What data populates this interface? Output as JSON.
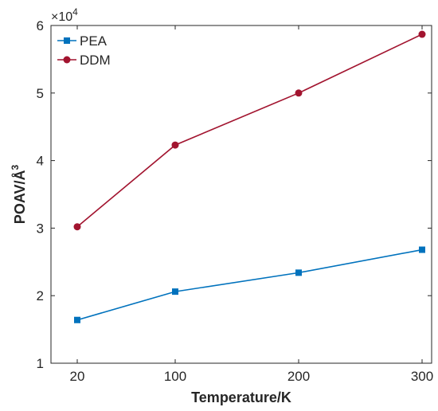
{
  "chart_data": {
    "type": "line",
    "x": [
      20,
      100,
      200,
      300
    ],
    "x_tick_labels": [
      "20",
      "100",
      "200",
      "300"
    ],
    "y_tick_labels": [
      "1",
      "2",
      "3",
      "4",
      "5",
      "6"
    ],
    "y_multiplier": {
      "base": "×10",
      "exponent": "4"
    },
    "series": [
      {
        "name": "PEA",
        "values": [
          16400,
          20600,
          23400,
          26800
        ],
        "color": "#0072bd",
        "marker": "square"
      },
      {
        "name": "DDM",
        "values": [
          30200,
          42300,
          50000,
          58700
        ],
        "color": "#a2142f",
        "marker": "circle"
      }
    ],
    "xlabel": "Temperature/K",
    "ylabel": {
      "base": "POAV/Å",
      "superscript": "3"
    },
    "ylim": [
      10000,
      60000
    ],
    "x_scale": "categorical-nonlinear",
    "grid": false,
    "legend_position": "top-left"
  }
}
